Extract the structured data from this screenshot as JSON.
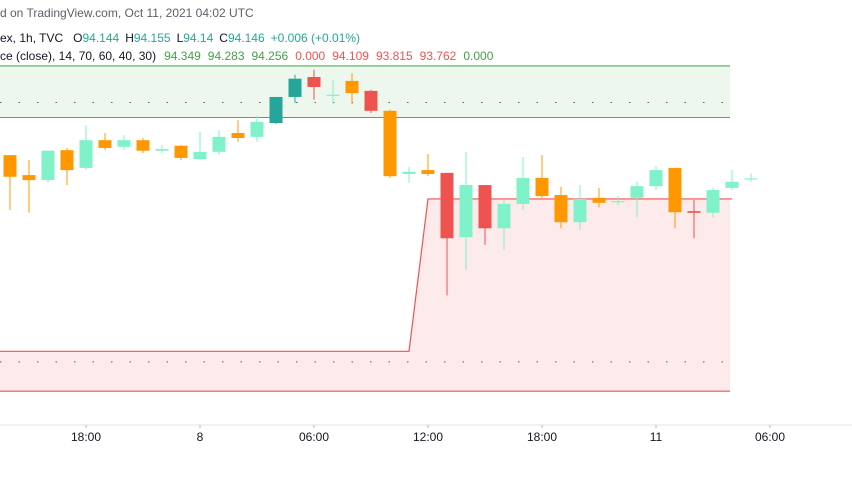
{
  "chart_data": {
    "type": "candlestick",
    "header": "d on TradingView.com, Oct 11, 2021 04:02 UTC",
    "symbol_line": "ex, 1h, TVC",
    "ohlc": [
      {
        "key": "O",
        "value": 94.144
      },
      {
        "key": "H",
        "value": 94.155
      },
      {
        "key": "L",
        "value": 94.14
      },
      {
        "key": "C",
        "value": 94.146
      }
    ],
    "change": "+0.006 (+0.01%)",
    "indicator_name": "ce (close), 14, 70, 60, 40, 30)",
    "indicator_values": [
      94.349,
      94.283,
      94.256,
      0,
      94.109,
      93.815,
      93.762,
      0
    ],
    "indicator_value_labels": [
      "94.349",
      "94.283",
      "94.256",
      "0.000",
      "94.109",
      "93.815",
      "93.762",
      "0.000"
    ],
    "indicator_colors": [
      "#43a047",
      "#43a047",
      "#43a047",
      "#ef5350",
      "#ef5350",
      "#ef5350",
      "#ef5350",
      "#43a047"
    ],
    "open": [
      94.188,
      94.152,
      94.143,
      94.197,
      94.165,
      94.215,
      94.203,
      94.215,
      94.196,
      94.205,
      94.181,
      94.194,
      94.228,
      94.221,
      94.246,
      94.293,
      94.329,
      94.295,
      94.322,
      94.304,
      94.268,
      94.154,
      94.161,
      94.156,
      94.04,
      94.134,
      94.056,
      94.1,
      94.147,
      94.116,
      94.067,
      94.111,
      94.103,
      94.111,
      94.132,
      94.165,
      94.087,
      94.084,
      94.129,
      94.144
    ],
    "high": [
      94.188,
      94.179,
      94.196,
      94.201,
      94.242,
      94.228,
      94.224,
      94.219,
      94.206,
      94.206,
      94.23,
      94.233,
      94.251,
      94.259,
      94.293,
      94.333,
      94.342,
      94.324,
      94.336,
      94.306,
      94.27,
      94.167,
      94.19,
      94.156,
      94.194,
      94.134,
      94.107,
      94.185,
      94.188,
      94.131,
      94.134,
      94.129,
      94.114,
      94.14,
      94.168,
      94.165,
      94.107,
      94.129,
      94.161,
      94.155
    ],
    "low": [
      94.089,
      94.084,
      94.138,
      94.134,
      94.161,
      94.197,
      94.197,
      94.192,
      94.192,
      94.179,
      94.179,
      94.188,
      94.212,
      94.212,
      94.244,
      94.282,
      94.288,
      94.28,
      94.28,
      94.264,
      94.147,
      94.138,
      94.15,
      93.935,
      93.981,
      94.026,
      94.017,
      94.089,
      94.111,
      94.056,
      94.053,
      94.094,
      94.098,
      94.076,
      94.125,
      94.056,
      94.038,
      94.075,
      94.125,
      94.14
    ],
    "close": [
      94.149,
      94.143,
      94.196,
      94.161,
      94.215,
      94.201,
      94.215,
      94.196,
      94.199,
      94.183,
      94.194,
      94.221,
      94.219,
      94.248,
      94.293,
      94.326,
      94.311,
      94.297,
      94.3,
      94.268,
      94.15,
      94.158,
      94.154,
      94.038,
      94.134,
      94.056,
      94.1,
      94.147,
      94.114,
      94.067,
      94.109,
      94.102,
      94.105,
      94.132,
      94.161,
      94.085,
      94.084,
      94.125,
      94.14,
      94.146
    ],
    "colors": [
      "#ff9800",
      "#ff9800",
      "#7ff2c9",
      "#ff9800",
      "#7ff2c9",
      "#ff9800",
      "#7ff2c9",
      "#ff9800",
      "#7ff2c9",
      "#ff9800",
      "#7ff2c9",
      "#7ff2c9",
      "#ff9800",
      "#7ff2c9",
      "#26a69a",
      "#26a69a",
      "#ef5350",
      "#7ff2c9",
      "#ff9800",
      "#ef5350",
      "#ff9800",
      "#7ff2c9",
      "#ff9800",
      "#ef5350",
      "#7ff2c9",
      "#ef5350",
      "#7ff2c9",
      "#7ff2c9",
      "#ff9800",
      "#ff9800",
      "#7ff2c9",
      "#ff9800",
      "#7ff2c9",
      "#7ff2c9",
      "#7ff2c9",
      "#ff9800",
      "#ef5350",
      "#7ff2c9",
      "#7ff2c9",
      "#7ff2c9"
    ],
    "lower_band_top": [
      93.834,
      93.834,
      93.834,
      93.834,
      93.834,
      93.834,
      93.834,
      93.834,
      93.834,
      93.834,
      93.834,
      93.834,
      93.834,
      93.834,
      93.834,
      93.834,
      93.834,
      93.834,
      93.834,
      93.834,
      93.834,
      93.834,
      94.109,
      94.109,
      94.109,
      94.109,
      94.109,
      94.109,
      94.109,
      94.109,
      94.109,
      94.109,
      94.109,
      94.109,
      94.109,
      94.109,
      94.109,
      94.109,
      94.109,
      94.109
    ],
    "xticks": [
      {
        "value": 4,
        "label": "18:00"
      },
      {
        "value": 10,
        "label": "8"
      },
      {
        "value": 16,
        "label": "06:00"
      },
      {
        "value": 22,
        "label": "12:00"
      },
      {
        "value": 28,
        "label": "18:00"
      },
      {
        "value": 34,
        "label": "11"
      },
      {
        "value": 40,
        "label": "06:00"
      }
    ],
    "xlim": [
      -0.526,
      44.316
    ],
    "ylim": [
      93.701,
      94.468
    ]
  }
}
